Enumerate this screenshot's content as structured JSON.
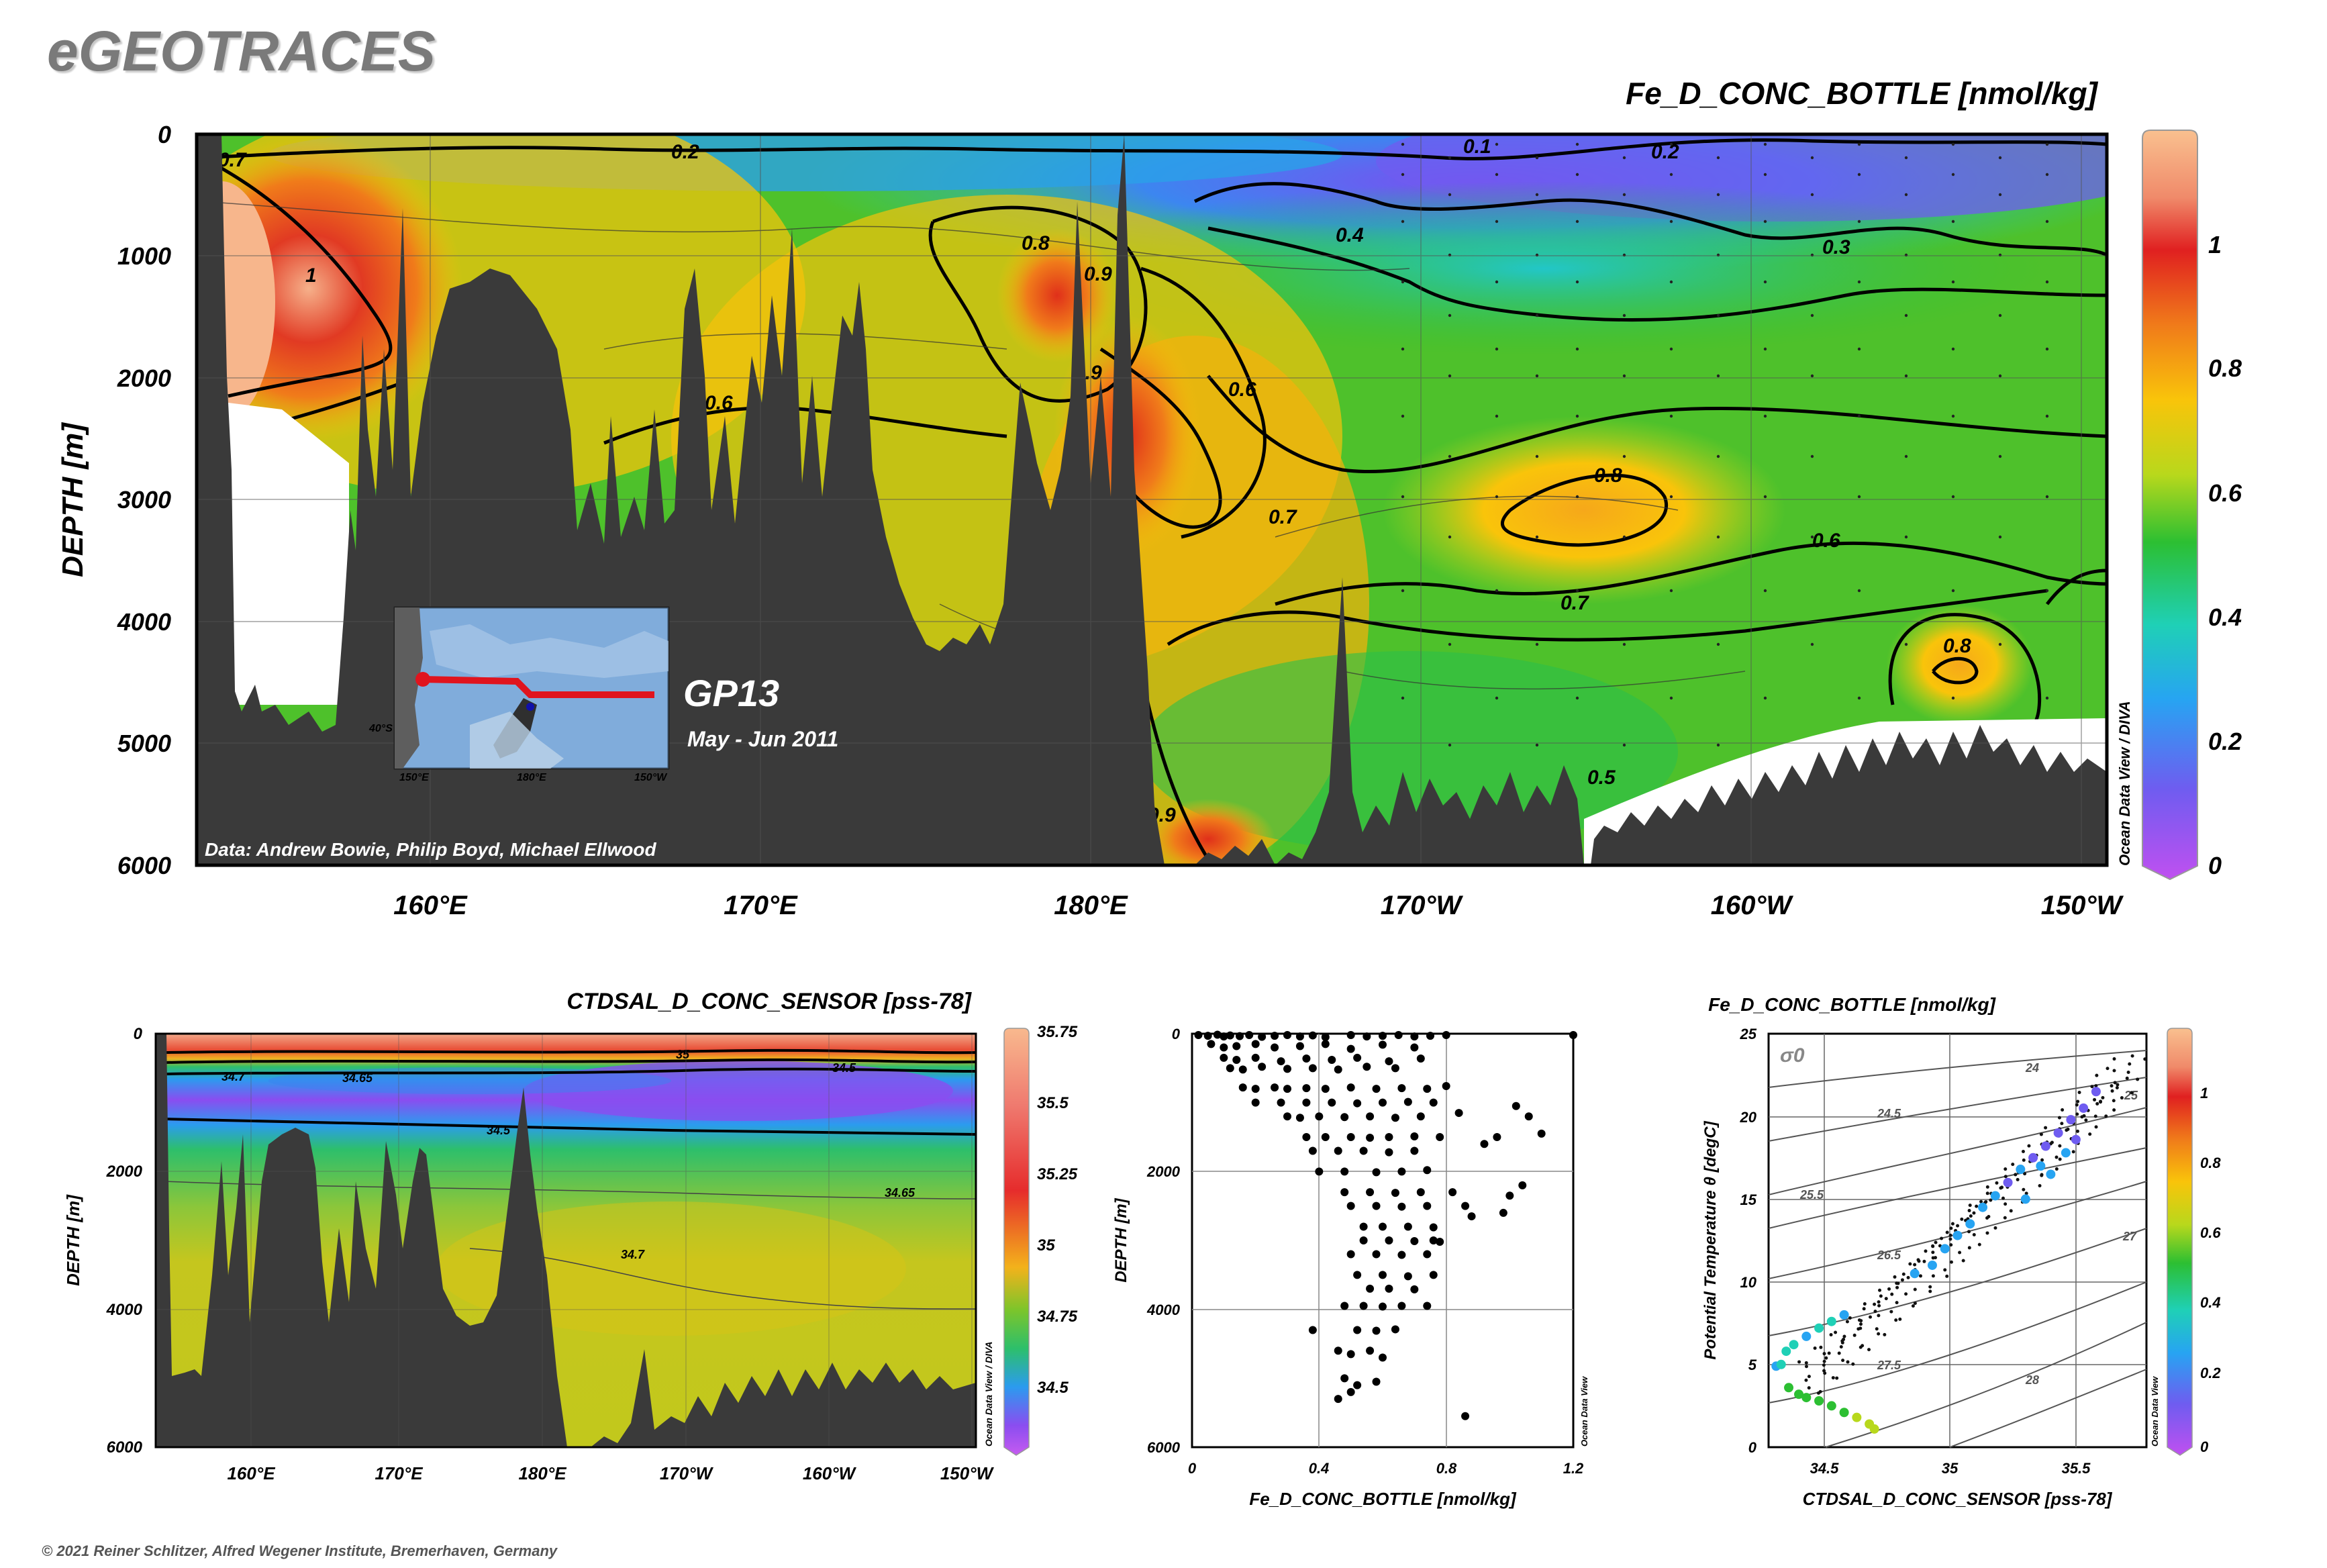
{
  "header": {
    "app_title": "eGEOTRACES",
    "copyright": "© 2021 Reiner Schlitzer, Alfred Wegener Institute, Bremerhaven, Germany"
  },
  "main_section": {
    "variable_label": "Fe_D_CONC_BOTTLE [nmol/kg]",
    "ylabel": "DEPTH [m]",
    "depth_ticks": [
      "0",
      "1000",
      "2000",
      "3000",
      "4000",
      "5000",
      "6000"
    ],
    "lon_ticks": [
      "160°E",
      "170°E",
      "180°E",
      "170°W",
      "160°W",
      "150°W"
    ],
    "colorbar_ticks": [
      "1",
      "0.8",
      "0.6",
      "0.4",
      "0.2",
      "0"
    ],
    "colorbar_credit": "Ocean Data View / DIVA",
    "data_credit": "Data: Andrew Bowie, Philip Boyd, Michael Ellwood",
    "cruise": "GP13",
    "cruise_dates": "May - Jun 2011",
    "contour_labels": [
      "0.2",
      "0.1",
      "0.2",
      "0.7",
      "1",
      "0.8",
      "0.9",
      "0.4",
      "0.3",
      "0.9",
      "0.6",
      "0.6",
      "0.8",
      "0.7",
      "0.6",
      "0.7",
      "0.8",
      "0.5",
      "0.9"
    ],
    "inset_map": {
      "lat_label": "40°S",
      "lon_ticks": [
        "150°E",
        "180°E",
        "150°W"
      ]
    }
  },
  "salinity_section": {
    "variable_label": "CTDSAL_D_CONC_SENSOR [pss-78]",
    "ylabel": "DEPTH [m]",
    "depth_ticks": [
      "0",
      "2000",
      "4000",
      "6000"
    ],
    "lon_ticks": [
      "160°E",
      "170°E",
      "180°E",
      "170°W",
      "160°W",
      "150°W"
    ],
    "colorbar_ticks": [
      "35.75",
      "35.5",
      "35.25",
      "35",
      "34.75",
      "34.5"
    ],
    "colorbar_credit": "Ocean Data View / DIVA",
    "contour_labels": [
      "35",
      "34.7",
      "34.65",
      "34.5",
      "34.5",
      "34.65",
      "34.7"
    ]
  },
  "profile_plot": {
    "xlabel": "Fe_D_CONC_BOTTLE [nmol/kg]",
    "ylabel": "DEPTH [m]",
    "x_ticks": [
      "0",
      "0.4",
      "0.8",
      "1.2"
    ],
    "y_ticks": [
      "0",
      "2000",
      "4000",
      "6000"
    ],
    "credit": "Ocean Data View"
  },
  "ts_plot": {
    "title": "Fe_D_CONC_BOTTLE [nmol/kg]",
    "xlabel": "CTDSAL_D_CONC_SENSOR [pss-78]",
    "ylabel": "Potential Temperature θ [degC]",
    "x_ticks": [
      "34.5",
      "35",
      "35.5"
    ],
    "y_ticks": [
      "0",
      "5",
      "10",
      "15",
      "20",
      "25"
    ],
    "sigma_label": "σ0",
    "isopycnal_labels": [
      "24",
      "24.5",
      "25",
      "25.5",
      "26.5",
      "27",
      "27.5",
      "28"
    ],
    "colorbar_ticks": [
      "1",
      "0.8",
      "0.6",
      "0.4",
      "0.2",
      "0"
    ],
    "colorbar_credit": "Ocean Data View"
  },
  "colors": {
    "seafloor": "#3a3a3a",
    "colorbar_fe": [
      "#f9c08f",
      "#e02020",
      "#f07b1a",
      "#f9c40a",
      "#b8d81c",
      "#2cbf32",
      "#1fd0b6",
      "#27a4f2",
      "#6f5cf0",
      "#c050f0"
    ],
    "colorbar_sal": [
      "#f8b98e",
      "#ef7a6f",
      "#e62c2c",
      "#f3b21b",
      "#7cc52b",
      "#2dbf6b",
      "#2b9bef",
      "#8a4df0",
      "#c65bf0"
    ]
  },
  "chart_data": [
    {
      "type": "heatmap",
      "title": "Fe_D_CONC_BOTTLE [nmol/kg]",
      "ylabel": "DEPTH [m]",
      "xlim": [
        153,
        149.5
      ],
      "x_ticks": [
        "160°E",
        "170°E",
        "180°E",
        "170°W",
        "160°W",
        "150°W"
      ],
      "ylim": [
        6000,
        0
      ],
      "colorbar_range": [
        0,
        1.15
      ],
      "contour_levels": [
        0.1,
        0.2,
        0.3,
        0.4,
        0.5,
        0.6,
        0.7,
        0.8,
        0.9,
        1.0
      ],
      "features": [
        {
          "description": "high Fe core",
          "lon": "155°E",
          "depth": 1200,
          "value": 1.1
        },
        {
          "description": "high Fe core",
          "lon": "179°E",
          "depth": 1300,
          "value": 0.95
        },
        {
          "description": "high Fe core",
          "lon": "179°E",
          "depth": 2500,
          "value": 0.9
        },
        {
          "description": "high Fe core",
          "lon": "165°W",
          "depth": 3000,
          "value": 0.8
        },
        {
          "description": "high Fe core",
          "lon": "154°W",
          "depth": 4400,
          "value": 0.8
        },
        {
          "description": "surface minimum",
          "lon": "170°W",
          "depth": 50,
          "value": 0.1
        }
      ]
    },
    {
      "type": "heatmap",
      "title": "CTDSAL_D_CONC_SENSOR [pss-78]",
      "ylabel": "DEPTH [m]",
      "ylim": [
        6000,
        0
      ],
      "colorbar_range": [
        34.35,
        35.75
      ],
      "contour_levels": [
        34.5,
        34.65,
        34.7,
        35
      ]
    },
    {
      "type": "scatter",
      "xlabel": "Fe_D_CONC_BOTTLE [nmol/kg]",
      "ylabel": "DEPTH [m]",
      "xlim": [
        0,
        1.2
      ],
      "ylim": [
        6000,
        0
      ],
      "points": [
        [
          0.02,
          20
        ],
        [
          0.05,
          30
        ],
        [
          0.08,
          15
        ],
        [
          0.1,
          40
        ],
        [
          0.12,
          25
        ],
        [
          0.15,
          35
        ],
        [
          0.18,
          20
        ],
        [
          0.22,
          45
        ],
        [
          0.26,
          30
        ],
        [
          0.3,
          20
        ],
        [
          0.34,
          40
        ],
        [
          0.38,
          25
        ],
        [
          0.42,
          50
        ],
        [
          0.5,
          20
        ],
        [
          0.55,
          40
        ],
        [
          0.6,
          30
        ],
        [
          0.65,
          20
        ],
        [
          0.7,
          40
        ],
        [
          0.75,
          30
        ],
        [
          0.8,
          20
        ],
        [
          1.2,
          20
        ],
        [
          0.06,
          150
        ],
        [
          0.1,
          200
        ],
        [
          0.14,
          180
        ],
        [
          0.2,
          150
        ],
        [
          0.26,
          200
        ],
        [
          0.34,
          180
        ],
        [
          0.42,
          150
        ],
        [
          0.5,
          220
        ],
        [
          0.6,
          160
        ],
        [
          0.7,
          200
        ],
        [
          0.1,
          350
        ],
        [
          0.14,
          380
        ],
        [
          0.2,
          350
        ],
        [
          0.28,
          400
        ],
        [
          0.36,
          360
        ],
        [
          0.44,
          380
        ],
        [
          0.52,
          350
        ],
        [
          0.62,
          400
        ],
        [
          0.72,
          360
        ],
        [
          0.12,
          500
        ],
        [
          0.16,
          520
        ],
        [
          0.22,
          480
        ],
        [
          0.3,
          510
        ],
        [
          0.38,
          500
        ],
        [
          0.46,
          520
        ],
        [
          0.55,
          480
        ],
        [
          0.64,
          500
        ],
        [
          0.16,
          780
        ],
        [
          0.2,
          800
        ],
        [
          0.26,
          780
        ],
        [
          0.3,
          800
        ],
        [
          0.36,
          790
        ],
        [
          0.42,
          800
        ],
        [
          0.5,
          780
        ],
        [
          0.58,
          800
        ],
        [
          0.66,
          790
        ],
        [
          0.74,
          800
        ],
        [
          0.8,
          760
        ],
        [
          0.2,
          1000
        ],
        [
          0.28,
          1000
        ],
        [
          0.36,
          1000
        ],
        [
          0.44,
          1000
        ],
        [
          0.52,
          1010
        ],
        [
          0.6,
          1000
        ],
        [
          0.68,
          990
        ],
        [
          0.76,
          1000
        ],
        [
          1.02,
          1050
        ],
        [
          0.3,
          1200
        ],
        [
          0.34,
          1220
        ],
        [
          0.4,
          1200
        ],
        [
          0.48,
          1210
        ],
        [
          0.56,
          1200
        ],
        [
          0.64,
          1220
        ],
        [
          0.72,
          1200
        ],
        [
          0.84,
          1150
        ],
        [
          1.06,
          1200
        ],
        [
          0.36,
          1500
        ],
        [
          0.42,
          1500
        ],
        [
          0.5,
          1500
        ],
        [
          0.56,
          1510
        ],
        [
          0.62,
          1500
        ],
        [
          0.7,
          1490
        ],
        [
          0.78,
          1500
        ],
        [
          0.96,
          1500
        ],
        [
          1.1,
          1450
        ],
        [
          0.38,
          1700
        ],
        [
          0.46,
          1700
        ],
        [
          0.54,
          1700
        ],
        [
          0.62,
          1720
        ],
        [
          0.7,
          1700
        ],
        [
          0.92,
          1600
        ],
        [
          0.4,
          2000
        ],
        [
          0.48,
          2000
        ],
        [
          0.58,
          2010
        ],
        [
          0.66,
          2000
        ],
        [
          0.74,
          1980
        ],
        [
          0.48,
          2300
        ],
        [
          0.56,
          2300
        ],
        [
          0.64,
          2310
        ],
        [
          0.72,
          2300
        ],
        [
          0.82,
          2300
        ],
        [
          1.0,
          2350
        ],
        [
          1.04,
          2200
        ],
        [
          0.5,
          2500
        ],
        [
          0.58,
          2500
        ],
        [
          0.66,
          2510
        ],
        [
          0.74,
          2500
        ],
        [
          0.86,
          2500
        ],
        [
          0.88,
          2650
        ],
        [
          0.98,
          2600
        ],
        [
          0.54,
          2800
        ],
        [
          0.6,
          2800
        ],
        [
          0.68,
          2800
        ],
        [
          0.76,
          2810
        ],
        [
          0.54,
          3000
        ],
        [
          0.62,
          3000
        ],
        [
          0.7,
          3010
        ],
        [
          0.76,
          3000
        ],
        [
          0.78,
          3020
        ],
        [
          0.5,
          3200
        ],
        [
          0.58,
          3200
        ],
        [
          0.66,
          3210
        ],
        [
          0.74,
          3200
        ],
        [
          0.52,
          3500
        ],
        [
          0.6,
          3500
        ],
        [
          0.68,
          3520
        ],
        [
          0.76,
          3500
        ],
        [
          0.56,
          3700
        ],
        [
          0.62,
          3700
        ],
        [
          0.7,
          3710
        ],
        [
          0.48,
          3950
        ],
        [
          0.54,
          3950
        ],
        [
          0.6,
          3960
        ],
        [
          0.66,
          3950
        ],
        [
          0.74,
          3950
        ],
        [
          0.38,
          4300
        ],
        [
          0.52,
          4300
        ],
        [
          0.58,
          4310
        ],
        [
          0.64,
          4290
        ],
        [
          0.46,
          4600
        ],
        [
          0.5,
          4650
        ],
        [
          0.56,
          4600
        ],
        [
          0.6,
          4700
        ],
        [
          0.48,
          5000
        ],
        [
          0.52,
          5100
        ],
        [
          0.58,
          5050
        ],
        [
          0.46,
          5300
        ],
        [
          0.5,
          5200
        ],
        [
          0.86,
          5550
        ]
      ]
    },
    {
      "type": "scatter",
      "xlabel": "CTDSAL_D_CONC_SENSOR [pss-78]",
      "ylabel": "Potential Temperature θ [degC]",
      "xlim": [
        34.3,
        35.8
      ],
      "ylim": [
        0,
        25
      ],
      "color_variable": "Fe_D_CONC_BOTTLE [nmol/kg]",
      "points": [
        {
          "x": 34.33,
          "y": 4.9,
          "c": 0.3
        },
        {
          "x": 34.35,
          "y": 5.0,
          "c": 0.35
        },
        {
          "x": 34.37,
          "y": 5.8,
          "c": 0.38
        },
        {
          "x": 34.4,
          "y": 6.2,
          "c": 0.32
        },
        {
          "x": 34.45,
          "y": 6.7,
          "c": 0.28
        },
        {
          "x": 34.5,
          "y": 7.2,
          "c": 0.35
        },
        {
          "x": 34.55,
          "y": 7.6,
          "c": 0.33
        },
        {
          "x": 34.6,
          "y": 8.0,
          "c": 0.3
        },
        {
          "x": 34.38,
          "y": 3.6,
          "c": 0.45
        },
        {
          "x": 34.42,
          "y": 3.2,
          "c": 0.48
        },
        {
          "x": 34.45,
          "y": 3.0,
          "c": 0.5
        },
        {
          "x": 34.5,
          "y": 2.8,
          "c": 0.5
        },
        {
          "x": 34.55,
          "y": 2.5,
          "c": 0.52
        },
        {
          "x": 34.6,
          "y": 2.1,
          "c": 0.55
        },
        {
          "x": 34.65,
          "y": 1.8,
          "c": 0.58
        },
        {
          "x": 34.7,
          "y": 1.4,
          "c": 0.6
        },
        {
          "x": 34.72,
          "y": 1.1,
          "c": 0.6
        },
        {
          "x": 34.88,
          "y": 10.5,
          "c": 0.3
        },
        {
          "x": 34.95,
          "y": 11.0,
          "c": 0.28
        },
        {
          "x": 35.0,
          "y": 12.0,
          "c": 0.25
        },
        {
          "x": 35.05,
          "y": 12.8,
          "c": 0.22
        },
        {
          "x": 35.1,
          "y": 13.5,
          "c": 0.24
        },
        {
          "x": 35.15,
          "y": 14.5,
          "c": 0.2
        },
        {
          "x": 35.2,
          "y": 15.2,
          "c": 0.22
        },
        {
          "x": 35.25,
          "y": 16.0,
          "c": 0.18
        },
        {
          "x": 35.3,
          "y": 16.8,
          "c": 0.2
        },
        {
          "x": 35.35,
          "y": 17.5,
          "c": 0.18
        },
        {
          "x": 35.4,
          "y": 18.2,
          "c": 0.16
        },
        {
          "x": 35.45,
          "y": 19.0,
          "c": 0.15
        },
        {
          "x": 35.5,
          "y": 19.8,
          "c": 0.14
        },
        {
          "x": 35.55,
          "y": 20.5,
          "c": 0.12
        },
        {
          "x": 35.6,
          "y": 21.5,
          "c": 0.12
        },
        {
          "x": 35.32,
          "y": 15.0,
          "c": 0.3
        },
        {
          "x": 35.42,
          "y": 16.5,
          "c": 0.28
        },
        {
          "x": 35.48,
          "y": 17.8,
          "c": 0.2
        },
        {
          "x": 35.38,
          "y": 17.0,
          "c": 0.22
        },
        {
          "x": 35.52,
          "y": 18.6,
          "c": 0.15
        }
      ]
    }
  ]
}
